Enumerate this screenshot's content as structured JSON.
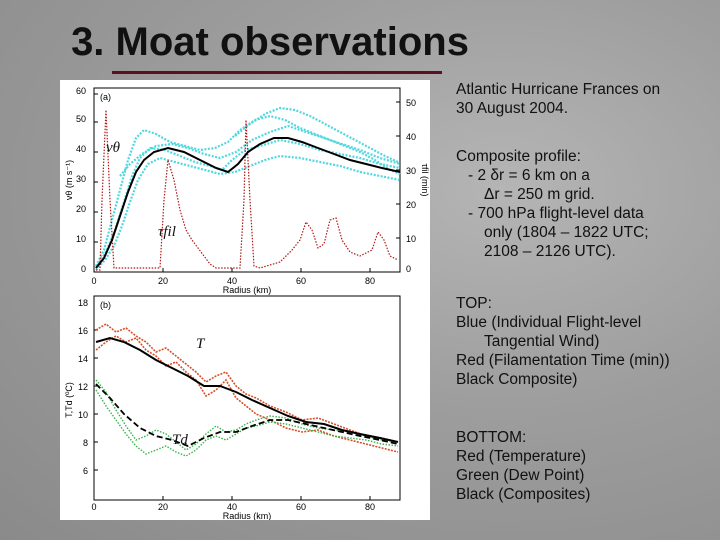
{
  "title": "3. Moat observations",
  "top_panel": {
    "panel_label": "(a)",
    "y_ticks_left": [
      "0",
      "10",
      "20",
      "30",
      "40",
      "50",
      "60"
    ],
    "y_ticks_right": [
      "0",
      "10",
      "20",
      "30",
      "40",
      "50"
    ],
    "x_ticks": [
      "0",
      "20",
      "40",
      "60",
      "80"
    ],
    "xlabel": "Radius (km)",
    "ylabel_left": "vθ (m s⁻¹)",
    "ylabel_right": "τfil (min)",
    "label_v": "vθ",
    "label_tau": "τfil"
  },
  "bottom_panel": {
    "panel_label": "(b)",
    "y_ticks": [
      "6",
      "8",
      "10",
      "12",
      "14",
      "16",
      "18"
    ],
    "x_ticks": [
      "0",
      "20",
      "40",
      "60",
      "80"
    ],
    "xlabel": "Radius (km)",
    "ylabel": "T,Td (ºC)",
    "label_T": "T",
    "label_Td": "Td"
  },
  "side_text": {
    "storm_line1": "Atlantic Hurricane Frances on",
    "storm_line2": "30 August 2004.",
    "comp_line1": "Composite profile:",
    "comp_line2": "- 2 δr = 6 km on a",
    "comp_line3": "Δr = 250 m grid.",
    "comp_line4": "- 700 hPa flight-level data",
    "comp_line5": "only (1804 – 1822 UTC;",
    "comp_line6": "2108 – 2126 UTC).",
    "top_heading": "TOP",
    "top_line1": "Blue (Individual Flight-level",
    "top_line2": "Tangential Wind)",
    "top_line3": "Red (Filamentation Time (min))",
    "top_line4": "Black Composite)",
    "bottom_heading": "BOTTOM",
    "bottom_line1": "Red (Temperature)",
    "bottom_line2": "Green (Dew Point)",
    "bottom_line3": "Black (Composites)"
  },
  "colors": {
    "wind": "#4fd8e0",
    "filamentation": "#b01818",
    "temperature": "#d8502a",
    "dewpoint": "#36b44a",
    "composite": "#000000",
    "title_rule": "#5a1020"
  }
}
